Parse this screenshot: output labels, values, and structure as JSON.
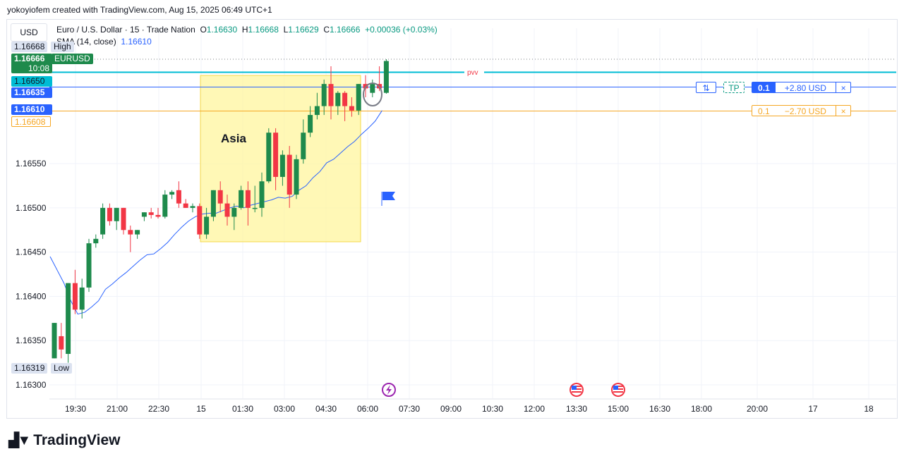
{
  "header": {
    "attribution": "yokoyiofem created with TradingView.com, Aug 15, 2025 06:49 UTC+1"
  },
  "currency_button": "USD",
  "legend": {
    "symbol": "Euro / U.S. Dollar · 15 · Trade Nation",
    "o_label": "O",
    "o": "1.16630",
    "h_label": "H",
    "h": "1.16668",
    "l_label": "L",
    "l": "1.16629",
    "c_label": "C",
    "c": "1.16666",
    "change": "+0.00036 (+0.03%)",
    "indicator": "SMA (14, close)",
    "indicator_value": "1.16610"
  },
  "price_tags": {
    "high_value": "1.16668",
    "high_label": "High",
    "last_value": "1.16666",
    "last_symbol": "EURUSD",
    "countdown": "10:08",
    "cyan_value": "1.16650",
    "entry_value": "1.16635",
    "sma_value": "1.16610",
    "sl_value": "1.16608",
    "low_value": "1.16319",
    "low_label": "Low"
  },
  "drawings": {
    "session_label": "Asia",
    "pvv_label": "pvv"
  },
  "orders": {
    "tp_line": {
      "reverse_icon": "⇅",
      "tp_label": "TP",
      "qty": "0.1",
      "pnl": "+2.80 USD",
      "close": "×"
    },
    "sl_line": {
      "qty": "0.1",
      "pnl": "−2.70 USD",
      "close": "×"
    }
  },
  "colors": {
    "up": "#089981",
    "down": "#f23645",
    "sma": "#2962ff",
    "cyan": "#00bcd4",
    "orange": "#f5a623",
    "session": "#fff59d"
  },
  "brand": "TradingView",
  "chart_data": {
    "type": "candlestick",
    "y_ticks": [
      "1.16550",
      "1.16500",
      "1.16450",
      "1.16400",
      "1.16350",
      "1.16300"
    ],
    "y_range": [
      1.16293,
      1.16705
    ],
    "x_ticks": [
      "19:30",
      "21:00",
      "22:30",
      "15",
      "01:30",
      "03:00",
      "04:30",
      "06:00",
      "07:30",
      "09:00",
      "10:30",
      "12:00",
      "13:30",
      "15:00",
      "16:30",
      "18:00",
      "20:00",
      "17",
      "18"
    ],
    "candles": [
      [
        1.1633,
        1.1637,
        1.1633,
        1.1637
      ],
      [
        1.16355,
        1.1637,
        1.1633,
        1.1634
      ],
      [
        1.16335,
        1.16415,
        1.16325,
        1.16415
      ],
      [
        1.16415,
        1.1643,
        1.1638,
        1.16385
      ],
      [
        1.16385,
        1.1642,
        1.16375,
        1.1641
      ],
      [
        1.1641,
        1.16465,
        1.16405,
        1.1646
      ],
      [
        1.1646,
        1.1647,
        1.16455,
        1.16465
      ],
      [
        1.1647,
        1.16505,
        1.16465,
        1.165
      ],
      [
        1.165,
        1.16505,
        1.1648,
        1.16485
      ],
      [
        1.16485,
        1.165,
        1.16475,
        1.165
      ],
      [
        1.165,
        1.165,
        1.1647,
        1.16475
      ],
      [
        1.16475,
        1.1648,
        1.1645,
        1.1647
      ],
      [
        1.1647,
        1.16475,
        1.16465,
        1.16475
      ],
      [
        1.1649,
        1.16495,
        1.16485,
        1.16495
      ],
      [
        1.16495,
        1.165,
        1.16488,
        1.16492
      ],
      [
        1.16492,
        1.165,
        1.16488,
        1.1649
      ],
      [
        1.1649,
        1.1652,
        1.16488,
        1.16515
      ],
      [
        1.16515,
        1.1652,
        1.1651,
        1.16518
      ],
      [
        1.1652,
        1.1653,
        1.165,
        1.16505
      ],
      [
        1.16505,
        1.1651,
        1.165,
        1.165
      ],
      [
        1.165,
        1.16505,
        1.16495,
        1.16502
      ],
      [
        1.16502,
        1.16505,
        1.16465,
        1.1647
      ],
      [
        1.1647,
        1.165,
        1.16465,
        1.1649
      ],
      [
        1.1649,
        1.1652,
        1.16485,
        1.1652
      ],
      [
        1.1652,
        1.1653,
        1.16495,
        1.16505
      ],
      [
        1.16505,
        1.16515,
        1.1648,
        1.1649
      ],
      [
        1.1649,
        1.16505,
        1.16475,
        1.165
      ],
      [
        1.165,
        1.16525,
        1.16498,
        1.1652
      ],
      [
        1.1652,
        1.1653,
        1.1648,
        1.165
      ],
      [
        1.165,
        1.16525,
        1.16495,
        1.165
      ],
      [
        1.165,
        1.1654,
        1.1649,
        1.1653
      ],
      [
        1.1653,
        1.1659,
        1.16528,
        1.16585
      ],
      [
        1.16585,
        1.1659,
        1.1652,
        1.16535
      ],
      [
        1.16535,
        1.16565,
        1.16525,
        1.1656
      ],
      [
        1.1656,
        1.1657,
        1.165,
        1.16515
      ],
      [
        1.16515,
        1.1656,
        1.1651,
        1.16555
      ],
      [
        1.16555,
        1.166,
        1.1655,
        1.16585
      ],
      [
        1.16585,
        1.16615,
        1.1658,
        1.16605
      ],
      [
        1.16605,
        1.1663,
        1.166,
        1.16615
      ],
      [
        1.16615,
        1.16645,
        1.16605,
        1.1664
      ],
      [
        1.1664,
        1.1666,
        1.166,
        1.16615
      ],
      [
        1.16615,
        1.16632,
        1.16605,
        1.1663
      ],
      [
        1.1663,
        1.16632,
        1.16598,
        1.16615
      ],
      [
        1.16615,
        1.16625,
        1.16603,
        1.1661
      ],
      [
        1.1661,
        1.1664,
        1.16605,
        1.1664
      ],
      [
        1.1664,
        1.1665,
        1.16625,
        1.16635
      ],
      [
        1.1663,
        1.16645,
        1.16625,
        1.1664
      ],
      [
        1.1664,
        1.1666,
        1.16632,
        1.16635
      ],
      [
        1.1663,
        1.16668,
        1.16629,
        1.16666
      ]
    ],
    "sma": [
      1.16445,
      1.1643,
      1.16415,
      1.16395,
      1.1638,
      1.16382,
      1.16388,
      1.16395,
      1.16408,
      1.16414,
      1.16421,
      1.16427,
      1.16434,
      1.16441,
      1.16447,
      1.16448,
      1.16454,
      1.16461,
      1.1647,
      1.16478,
      1.16485,
      1.1649,
      1.16493,
      1.16494,
      1.16494,
      1.16497,
      1.165,
      1.16502,
      1.165,
      1.16503,
      1.16505,
      1.16507,
      1.16509,
      1.16512,
      1.16511,
      1.16513,
      1.1652,
      1.16525,
      1.16534,
      1.16541,
      1.16551,
      1.16555,
      1.16562,
      1.16569,
      1.16575,
      1.16583,
      1.1659,
      1.16598,
      1.1661
    ]
  }
}
